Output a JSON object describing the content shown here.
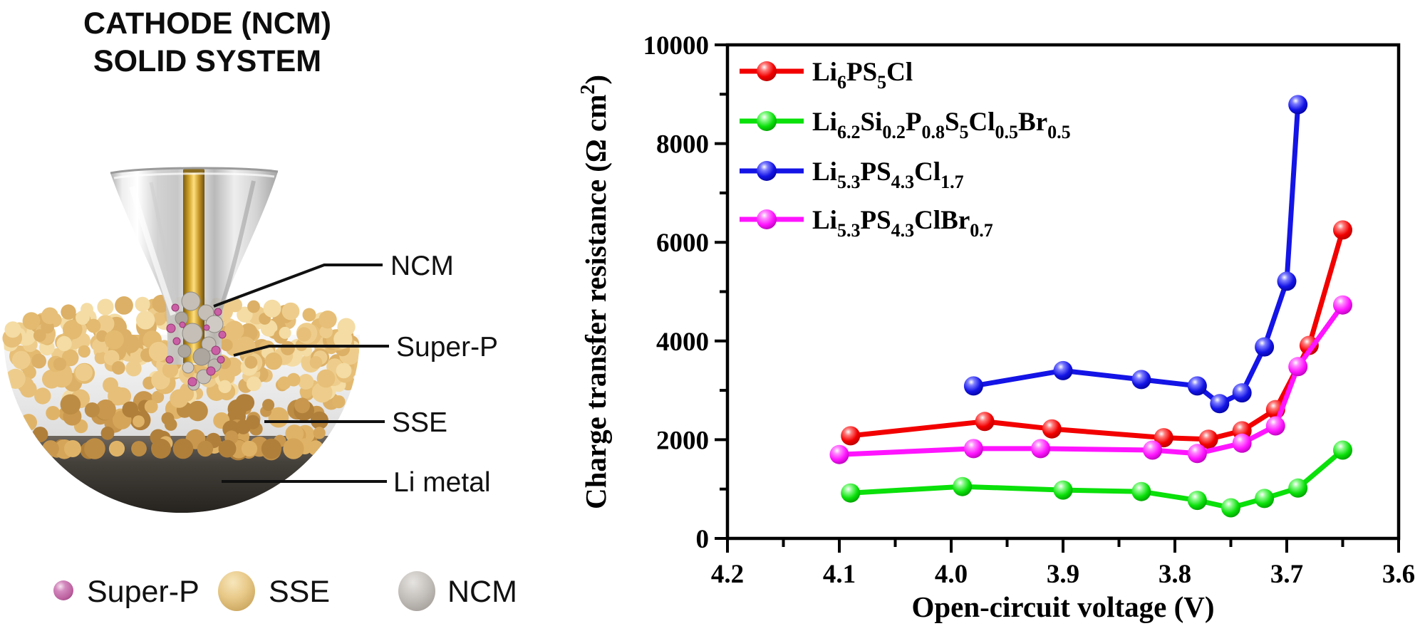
{
  "left_panel": {
    "title_line1": "CATHODE (NCM)",
    "title_line2": "SOLID SYSTEM",
    "callouts": [
      "NCM",
      "Super-P",
      "SSE",
      "Li metal"
    ],
    "legend": [
      {
        "label": "Super-P",
        "color": "#c066a8"
      },
      {
        "label": "SSE",
        "color": "#e2c07e"
      },
      {
        "label": "NCM",
        "color": "#b6b2ad"
      }
    ],
    "materials": {
      "rod_color": "#d4a017",
      "sse_particle_color": "#e3ba70",
      "li_metal_color": "#332f2a",
      "funnel_color": "#d8d8d8"
    }
  },
  "chart_data": {
    "type": "line",
    "title": "",
    "xlabel": "Open-circuit voltage (V)",
    "ylabel_base": "Charge transfer resistance (Ω cm",
    "ylabel_sup": "2",
    "ylabel_close": ")",
    "xlim": [
      4.2,
      3.6
    ],
    "ylim": [
      0,
      10000
    ],
    "x_axis_reversed": true,
    "grid": false,
    "legend_position": "upper-left-inside",
    "x_ticks": [
      "4.2",
      "4.1",
      "4.0",
      "3.9",
      "3.8",
      "3.7",
      "3.6"
    ],
    "x_tick_values": [
      4.2,
      4.1,
      4.0,
      3.9,
      3.8,
      3.7,
      3.6
    ],
    "x_minor_ticks": [
      4.15,
      4.05,
      3.95,
      3.85,
      3.75,
      3.65
    ],
    "y_ticks": [
      "0",
      "2000",
      "4000",
      "6000",
      "8000",
      "10000"
    ],
    "y_tick_values": [
      0,
      2000,
      4000,
      6000,
      8000,
      10000
    ],
    "y_minor_ticks": [
      1000,
      3000,
      5000,
      7000,
      9000
    ],
    "series": [
      {
        "name": "Li6PS5Cl",
        "color": "#f20000",
        "dark": "#aa0000",
        "formula": [
          {
            "t": "Li"
          },
          {
            "t": "6",
            "sub": true
          },
          {
            "t": "PS"
          },
          {
            "t": "5",
            "sub": true
          },
          {
            "t": "Cl"
          }
        ],
        "points": [
          [
            4.09,
            2080
          ],
          [
            3.97,
            2370
          ],
          [
            3.91,
            2220
          ],
          [
            3.81,
            2040
          ],
          [
            3.77,
            2010
          ],
          [
            3.74,
            2180
          ],
          [
            3.71,
            2610
          ],
          [
            3.68,
            3910
          ],
          [
            3.65,
            6250
          ]
        ]
      },
      {
        "name": "Li6.2Si0.2P0.8S5Cl0.5Br0.5",
        "color": "#0ae00a",
        "dark": "#009900",
        "formula": [
          {
            "t": "Li"
          },
          {
            "t": "6.2",
            "sub": true
          },
          {
            "t": "Si"
          },
          {
            "t": "0.2",
            "sub": true
          },
          {
            "t": "P"
          },
          {
            "t": "0.8",
            "sub": true
          },
          {
            "t": "S"
          },
          {
            "t": "5",
            "sub": true
          },
          {
            "t": "Cl"
          },
          {
            "t": "0.5",
            "sub": true
          },
          {
            "t": "Br"
          },
          {
            "t": "0.5",
            "sub": true
          }
        ],
        "points": [
          [
            4.09,
            920
          ],
          [
            3.99,
            1050
          ],
          [
            3.9,
            980
          ],
          [
            3.83,
            950
          ],
          [
            3.78,
            770
          ],
          [
            3.75,
            620
          ],
          [
            3.72,
            810
          ],
          [
            3.69,
            1020
          ],
          [
            3.65,
            1790
          ]
        ]
      },
      {
        "name": "Li5.3PS4.3Cl1.7",
        "color": "#1414e6",
        "dark": "#000099",
        "formula": [
          {
            "t": "Li"
          },
          {
            "t": "5.3",
            "sub": true
          },
          {
            "t": "PS"
          },
          {
            "t": "4.3",
            "sub": true
          },
          {
            "t": "Cl"
          },
          {
            "t": "1.7",
            "sub": true
          }
        ],
        "points": [
          [
            3.98,
            3090
          ],
          [
            3.9,
            3400
          ],
          [
            3.83,
            3220
          ],
          [
            3.78,
            3090
          ],
          [
            3.76,
            2730
          ],
          [
            3.74,
            2950
          ],
          [
            3.72,
            3880
          ],
          [
            3.7,
            5210
          ],
          [
            3.69,
            8790
          ]
        ]
      },
      {
        "name": "Li5.3PS4.3ClBr0.7",
        "color": "#ff14ff",
        "dark": "#aa00aa",
        "formula": [
          {
            "t": "Li"
          },
          {
            "t": "5.3",
            "sub": true
          },
          {
            "t": "PS"
          },
          {
            "t": "4.3",
            "sub": true
          },
          {
            "t": "ClBr"
          },
          {
            "t": "0.7",
            "sub": true
          }
        ],
        "points": [
          [
            4.1,
            1700
          ],
          [
            3.98,
            1820
          ],
          [
            3.92,
            1820
          ],
          [
            3.82,
            1790
          ],
          [
            3.78,
            1720
          ],
          [
            3.74,
            1930
          ],
          [
            3.71,
            2280
          ],
          [
            3.69,
            3480
          ],
          [
            3.65,
            4730
          ]
        ]
      }
    ]
  }
}
